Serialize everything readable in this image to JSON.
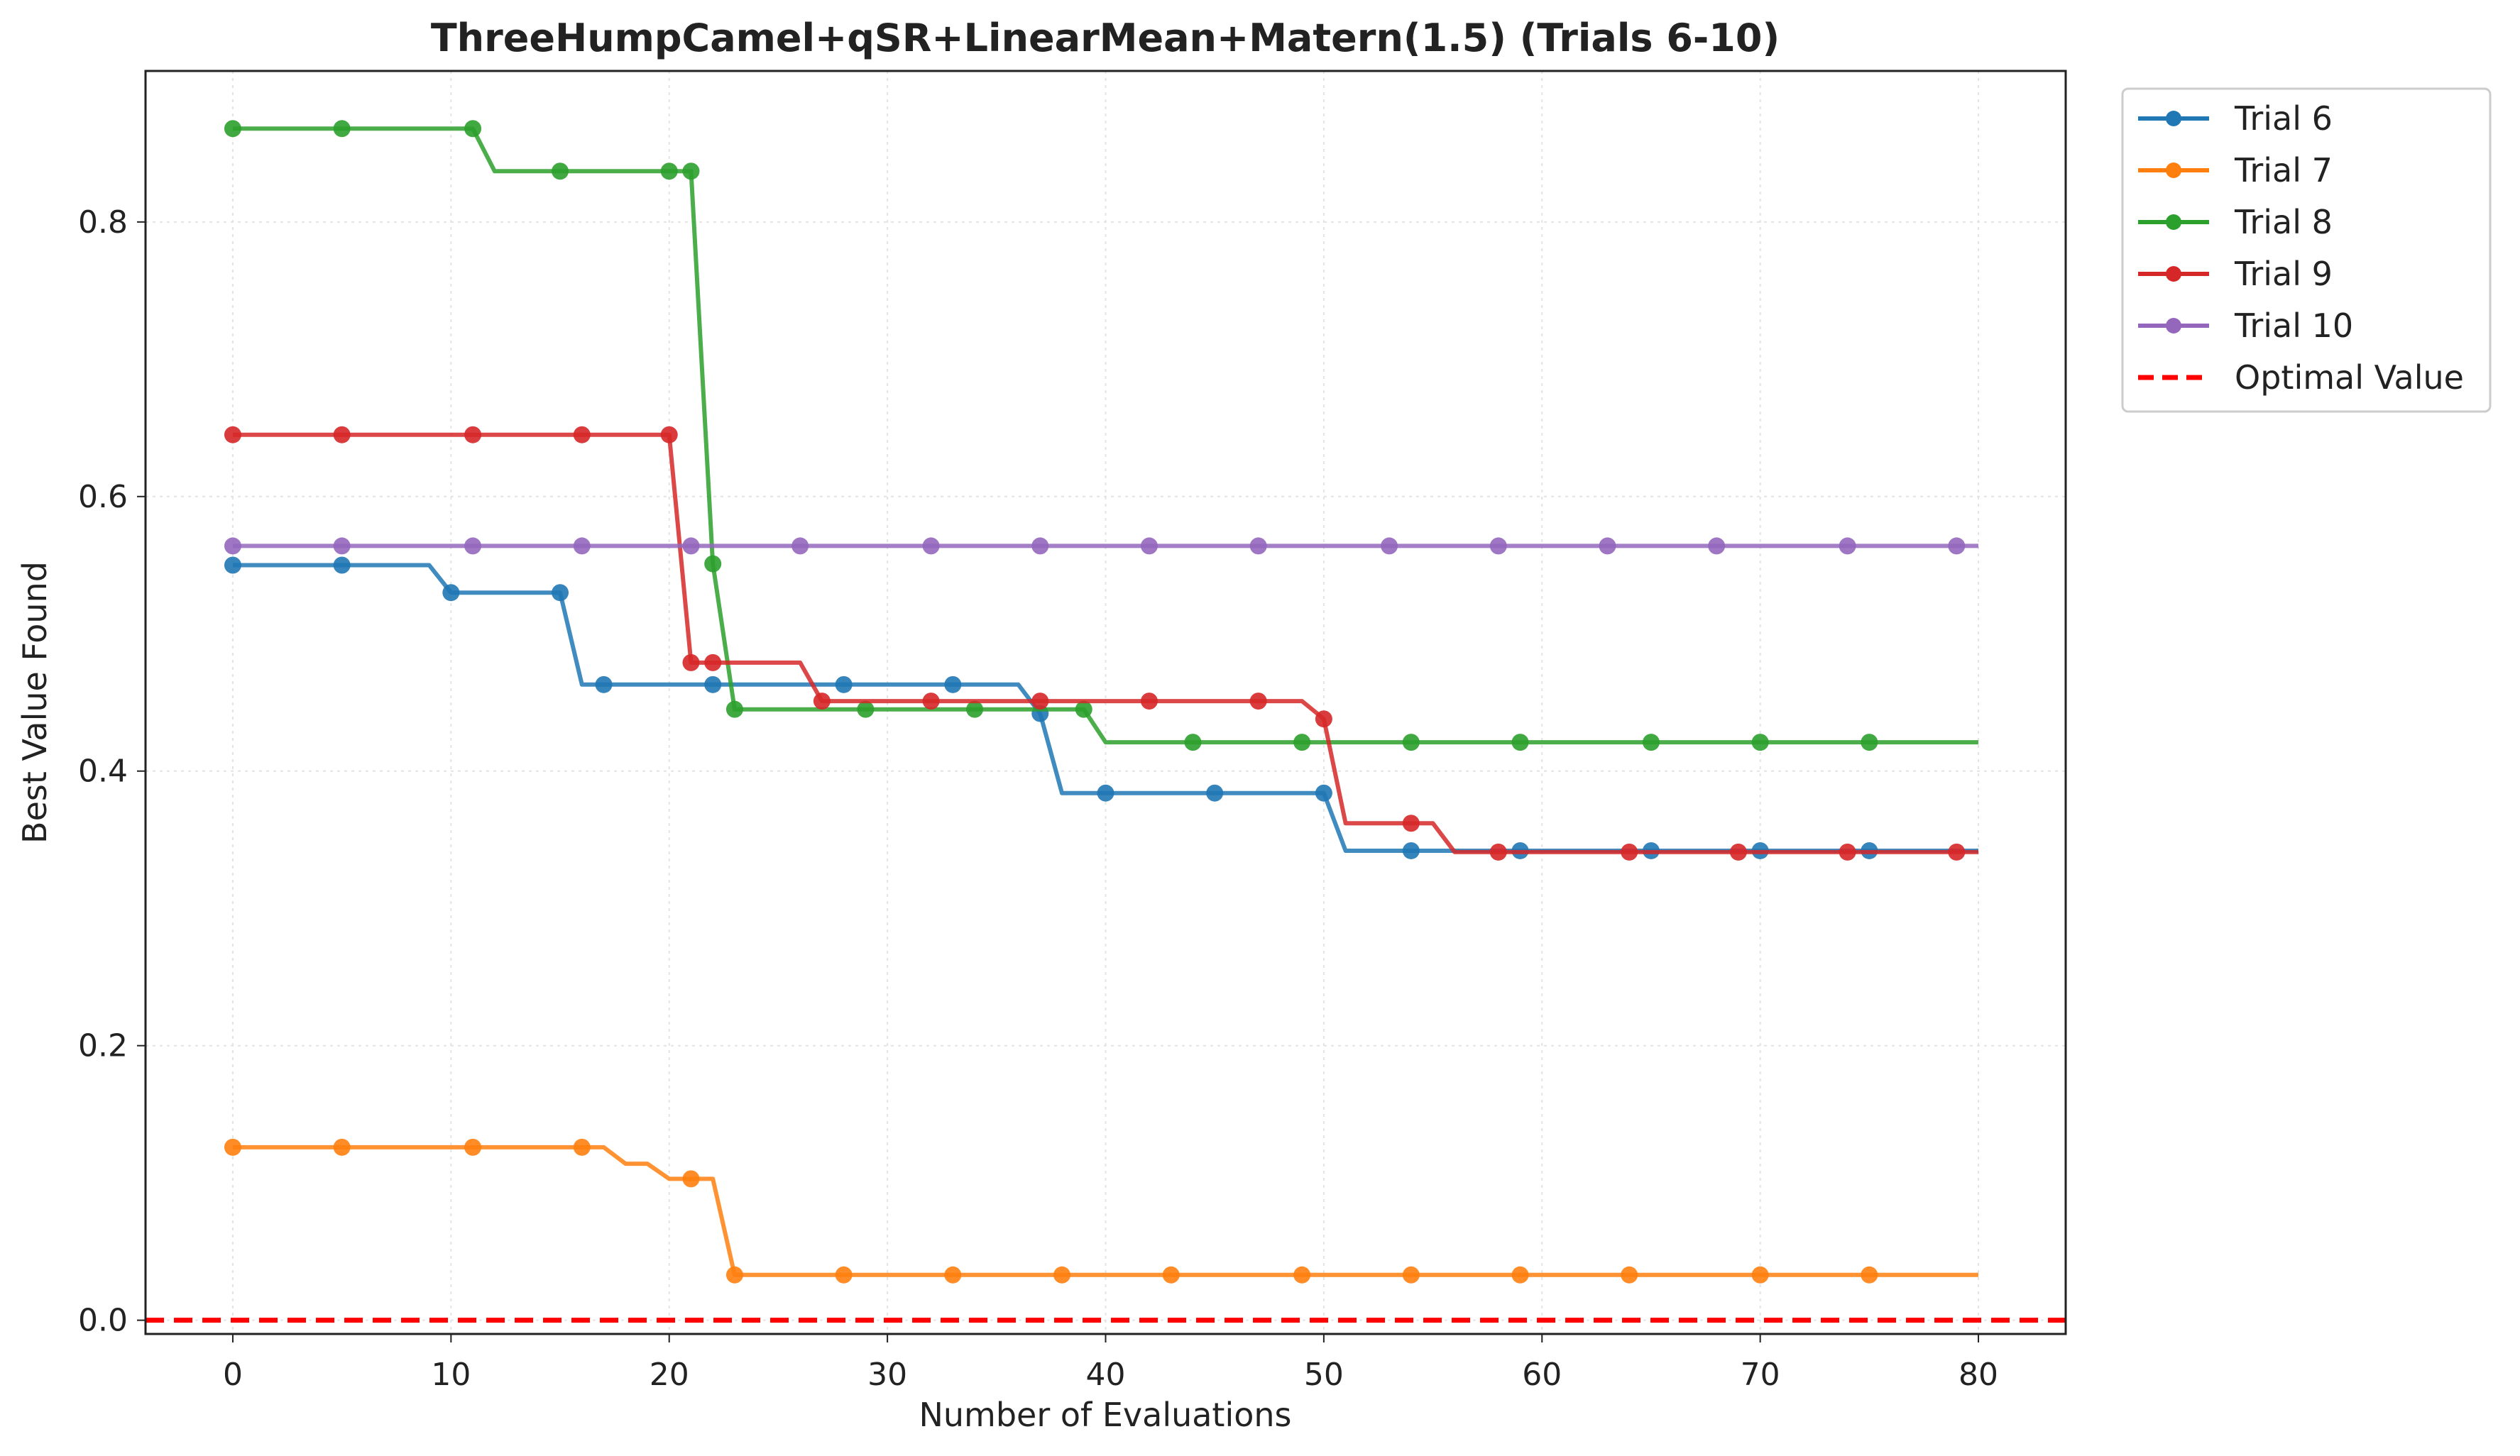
{
  "chart_data": {
    "type": "line",
    "title": "ThreeHumpCamel+qSR+LinearMean+Matern(1.5) (Trials 6-10)",
    "xlabel": "Number of Evaluations",
    "ylabel": "Best Value Found",
    "xlim": [
      -4,
      84
    ],
    "ylim": [
      -0.01,
      0.91
    ],
    "xticks": [
      0,
      10,
      20,
      30,
      40,
      50,
      60,
      70,
      80
    ],
    "yticks": [
      0.0,
      0.2,
      0.4,
      0.6,
      0.8
    ],
    "ytick_labels": [
      "0.0",
      "0.2",
      "0.4",
      "0.6",
      "0.8"
    ],
    "grid": true,
    "legend_position": "outside-top-right",
    "series": [
      {
        "name": "Trial 6",
        "color": "#1f77b4",
        "line": [
          [
            0,
            0.55
          ],
          [
            9,
            0.55
          ],
          [
            10,
            0.53
          ],
          [
            15,
            0.53
          ],
          [
            16,
            0.463
          ],
          [
            36,
            0.463
          ],
          [
            37,
            0.442
          ],
          [
            38,
            0.384
          ],
          [
            50,
            0.384
          ],
          [
            51,
            0.342
          ],
          [
            80,
            0.342
          ]
        ],
        "markers": [
          [
            0,
            0.55
          ],
          [
            5,
            0.55
          ],
          [
            10,
            0.53
          ],
          [
            15,
            0.53
          ],
          [
            17,
            0.463
          ],
          [
            22,
            0.463
          ],
          [
            28,
            0.463
          ],
          [
            33,
            0.463
          ],
          [
            37,
            0.442
          ],
          [
            40,
            0.384
          ],
          [
            45,
            0.384
          ],
          [
            50,
            0.384
          ],
          [
            54,
            0.342
          ],
          [
            59,
            0.342
          ],
          [
            65,
            0.342
          ],
          [
            70,
            0.342
          ],
          [
            75,
            0.342
          ]
        ]
      },
      {
        "name": "Trial 7",
        "color": "#ff7f0e",
        "line": [
          [
            0,
            0.126
          ],
          [
            17,
            0.126
          ],
          [
            18,
            0.114
          ],
          [
            19,
            0.114
          ],
          [
            20,
            0.103
          ],
          [
            22,
            0.103
          ],
          [
            23,
            0.033
          ],
          [
            80,
            0.033
          ]
        ],
        "markers": [
          [
            0,
            0.126
          ],
          [
            5,
            0.126
          ],
          [
            11,
            0.126
          ],
          [
            16,
            0.126
          ],
          [
            21,
            0.103
          ],
          [
            23,
            0.033
          ],
          [
            28,
            0.033
          ],
          [
            33,
            0.033
          ],
          [
            38,
            0.033
          ],
          [
            43,
            0.033
          ],
          [
            49,
            0.033
          ],
          [
            54,
            0.033
          ],
          [
            59,
            0.033
          ],
          [
            64,
            0.033
          ],
          [
            70,
            0.033
          ],
          [
            75,
            0.033
          ]
        ]
      },
      {
        "name": "Trial 8",
        "color": "#2ca02c",
        "line": [
          [
            0,
            0.868
          ],
          [
            11,
            0.868
          ],
          [
            12,
            0.837
          ],
          [
            21,
            0.837
          ],
          [
            22,
            0.551
          ],
          [
            23,
            0.445
          ],
          [
            39,
            0.445
          ],
          [
            40,
            0.421
          ],
          [
            80,
            0.421
          ]
        ],
        "markers": [
          [
            0,
            0.868
          ],
          [
            5,
            0.868
          ],
          [
            11,
            0.868
          ],
          [
            15,
            0.837
          ],
          [
            20,
            0.837
          ],
          [
            21,
            0.837
          ],
          [
            22,
            0.551
          ],
          [
            23,
            0.445
          ],
          [
            29,
            0.445
          ],
          [
            34,
            0.445
          ],
          [
            39,
            0.445
          ],
          [
            44,
            0.421
          ],
          [
            49,
            0.421
          ],
          [
            54,
            0.421
          ],
          [
            59,
            0.421
          ],
          [
            65,
            0.421
          ],
          [
            70,
            0.421
          ],
          [
            75,
            0.421
          ]
        ]
      },
      {
        "name": "Trial 9",
        "color": "#d62728",
        "line": [
          [
            0,
            0.645
          ],
          [
            20,
            0.645
          ],
          [
            21,
            0.479
          ],
          [
            26,
            0.479
          ],
          [
            27,
            0.451
          ],
          [
            49,
            0.451
          ],
          [
            50,
            0.438
          ],
          [
            51,
            0.362
          ],
          [
            55,
            0.362
          ],
          [
            56,
            0.341
          ],
          [
            80,
            0.341
          ]
        ],
        "markers": [
          [
            0,
            0.645
          ],
          [
            5,
            0.645
          ],
          [
            11,
            0.645
          ],
          [
            16,
            0.645
          ],
          [
            20,
            0.645
          ],
          [
            21,
            0.479
          ],
          [
            22,
            0.479
          ],
          [
            27,
            0.451
          ],
          [
            32,
            0.451
          ],
          [
            37,
            0.451
          ],
          [
            42,
            0.451
          ],
          [
            47,
            0.451
          ],
          [
            50,
            0.438
          ],
          [
            54,
            0.362
          ],
          [
            58,
            0.341
          ],
          [
            64,
            0.341
          ],
          [
            69,
            0.341
          ],
          [
            74,
            0.341
          ],
          [
            79,
            0.341
          ]
        ]
      },
      {
        "name": "Trial 10",
        "color": "#9467bd",
        "line": [
          [
            0,
            0.564
          ],
          [
            80,
            0.564
          ]
        ],
        "markers": [
          [
            0,
            0.564
          ],
          [
            5,
            0.564
          ],
          [
            11,
            0.564
          ],
          [
            16,
            0.564
          ],
          [
            21,
            0.564
          ],
          [
            26,
            0.564
          ],
          [
            32,
            0.564
          ],
          [
            37,
            0.564
          ],
          [
            42,
            0.564
          ],
          [
            47,
            0.564
          ],
          [
            53,
            0.564
          ],
          [
            58,
            0.564
          ],
          [
            63,
            0.564
          ],
          [
            68,
            0.564
          ],
          [
            74,
            0.564
          ],
          [
            79,
            0.564
          ]
        ]
      }
    ],
    "reference_line": {
      "name": "Optimal Value",
      "y": 0.0,
      "color": "#ff0000",
      "style": "dashed"
    }
  }
}
